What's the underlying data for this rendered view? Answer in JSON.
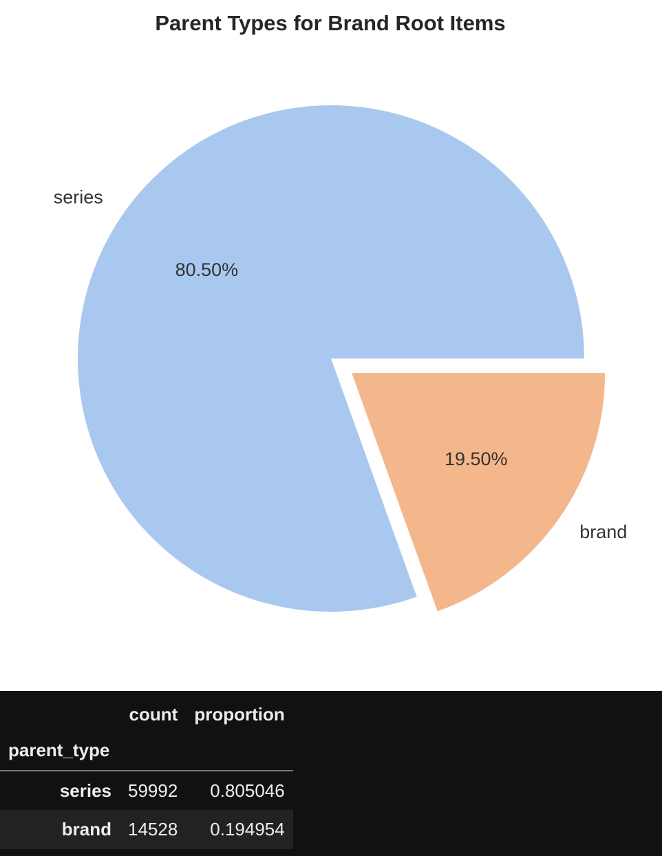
{
  "chart_data": {
    "type": "pie",
    "title": "Parent Types for Brand Root Items",
    "slices": [
      {
        "label": "series",
        "value": 80.5,
        "pct_label": "80.50%",
        "color": "#a9c8ef",
        "explode": 0
      },
      {
        "label": "brand",
        "value": 19.5,
        "pct_label": "19.50%",
        "color": "#f4b78c",
        "explode": 0.1
      }
    ],
    "start_angle_deg": 0,
    "direction": "counterclockwise"
  },
  "table": {
    "columns": [
      "count",
      "proportion"
    ],
    "index_name": "parent_type",
    "rows": [
      {
        "index": "series",
        "count": "59992",
        "proportion": "0.805046"
      },
      {
        "index": "brand",
        "count": "14528",
        "proportion": "0.194954"
      }
    ]
  }
}
